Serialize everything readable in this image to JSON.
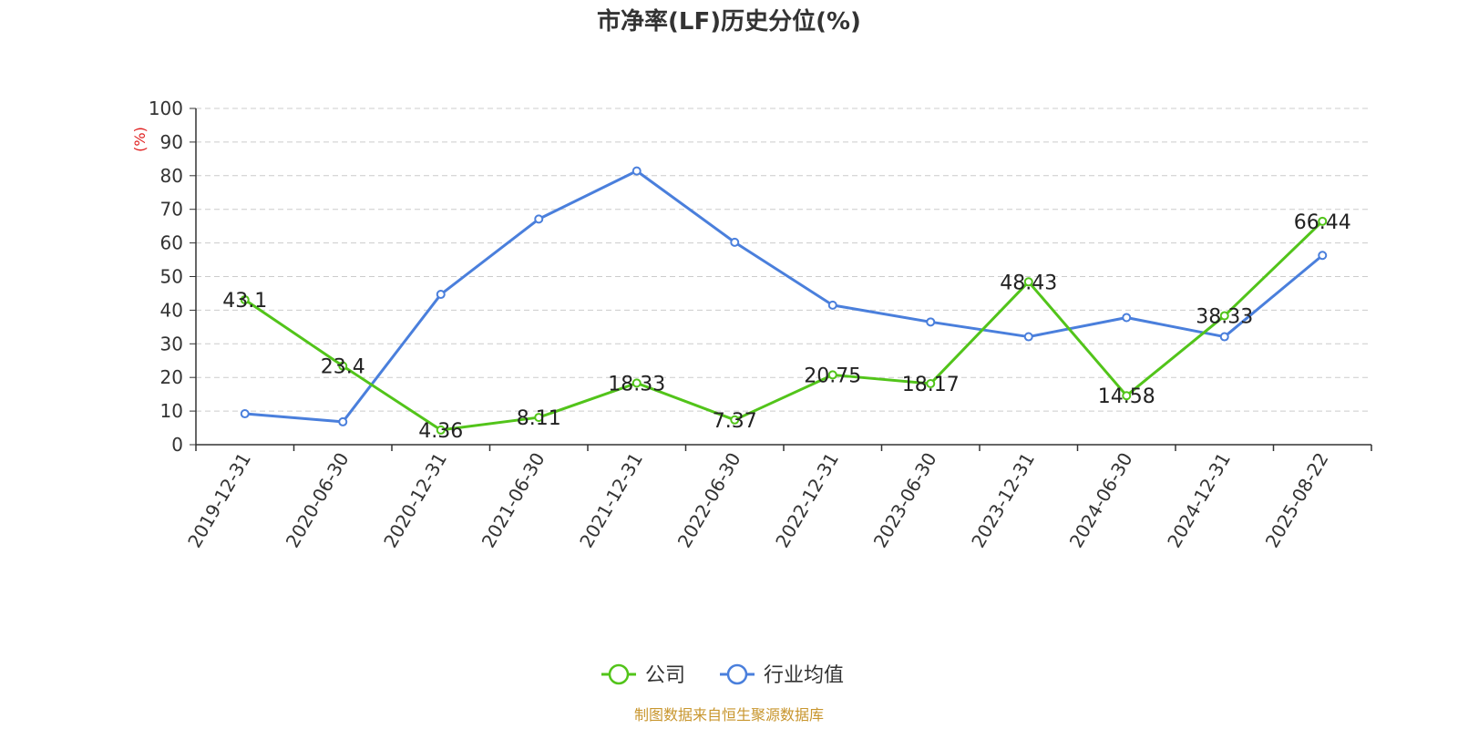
{
  "chart_data": {
    "type": "line",
    "title": "市净率(LF)历史分位(%)",
    "ylabel": "(%)",
    "xlabel": "",
    "ylim": [
      0,
      100
    ],
    "yticks": [
      0,
      10,
      20,
      30,
      40,
      50,
      60,
      70,
      80,
      90,
      100
    ],
    "grid": true,
    "legend_position": "bottom",
    "categories": [
      "2019-12-31",
      "2020-06-30",
      "2020-12-31",
      "2021-06-30",
      "2021-12-31",
      "2022-06-30",
      "2022-12-31",
      "2023-06-30",
      "2023-12-31",
      "2024-06-30",
      "2024-12-31",
      "2025-08-22"
    ],
    "series": [
      {
        "name": "公司",
        "color": "#52c41a",
        "values": [
          43.1,
          23.4,
          4.36,
          8.11,
          18.33,
          7.37,
          20.75,
          18.17,
          48.43,
          14.58,
          38.33,
          66.44
        ],
        "labels": [
          "43.1",
          "23.4",
          "4.36",
          "8.11",
          "18.33",
          "7.37",
          "20.75",
          "18.17",
          "48.43",
          "14.58",
          "38.33",
          "66.44"
        ]
      },
      {
        "name": "行业均值",
        "color": "#4a7fdc",
        "values": [
          9.2,
          6.8,
          44.7,
          67.1,
          81.4,
          60.2,
          41.5,
          36.5,
          32.1,
          37.8,
          32.1,
          56.3
        ]
      }
    ]
  },
  "source_text": "制图数据来自恒生聚源数据库",
  "colors": {
    "unit": "#e02020",
    "source": "#c8962e",
    "axis": "#333333",
    "grid": "#cccccc"
  }
}
